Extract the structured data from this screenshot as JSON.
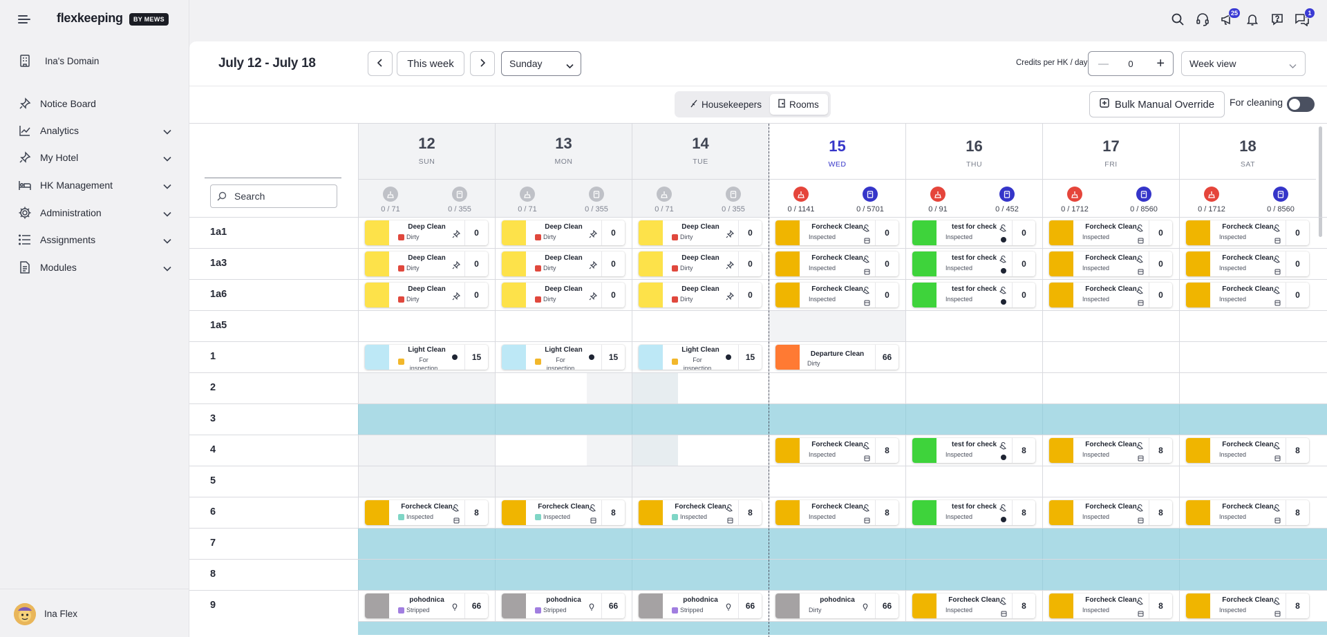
{
  "brand": {
    "logo": "flexkeeping",
    "by": "BY MEWS"
  },
  "sidebar": {
    "domain": "Ina's Domain",
    "items": [
      {
        "label": "Notice Board",
        "icon": "pin-icon",
        "expandable": false
      },
      {
        "label": "Analytics",
        "icon": "chart-icon",
        "expandable": true
      },
      {
        "label": "My Hotel",
        "icon": "pin-icon",
        "expandable": true
      },
      {
        "label": "HK Management",
        "icon": "bed-icon",
        "expandable": true
      },
      {
        "label": "Administration",
        "icon": "gear-icon",
        "expandable": true
      },
      {
        "label": "Assignments",
        "icon": "list-icon",
        "expandable": true
      },
      {
        "label": "Modules",
        "icon": "document-icon",
        "expandable": true
      }
    ],
    "user": "Ina Flex"
  },
  "topbar": {
    "icons": [
      "search-icon",
      "support-icon",
      "megaphone-icon",
      "bell-icon",
      "help-icon",
      "chat-icon"
    ],
    "megaphone_badge": "25",
    "chat_badge": "1"
  },
  "toolbar": {
    "date_range": "July 12 - July 18",
    "this_week": "This week",
    "day_select": "Sunday",
    "credits_label": "Credits per HK / day:",
    "credits_value": "0",
    "view_select": "Week view",
    "tab_housekeepers": "Housekeepers",
    "tab_rooms": "Rooms",
    "bulk_override": "Bulk Manual Override",
    "for_cleaning": "For cleaning"
  },
  "search": {
    "placeholder": "Search"
  },
  "days": [
    {
      "num": "12",
      "name": "SUN",
      "s1": "0 / 71",
      "s2": "0 / 355"
    },
    {
      "num": "13",
      "name": "MON",
      "s1": "0 / 71",
      "s2": "0 / 355"
    },
    {
      "num": "14",
      "name": "TUE",
      "s1": "0 / 71",
      "s2": "0 / 355"
    },
    {
      "num": "15",
      "name": "WED",
      "s1": "0 / 1141",
      "s2": "0 / 5701"
    },
    {
      "num": "16",
      "name": "THU",
      "s1": "0 / 91",
      "s2": "0 / 452"
    },
    {
      "num": "17",
      "name": "FRI",
      "s1": "0 / 1712",
      "s2": "0 / 8560"
    },
    {
      "num": "18",
      "name": "SAT",
      "s1": "0 / 1712",
      "s2": "0 / 8560"
    }
  ],
  "colors": {
    "deep_clean": "#fde24a",
    "forcheck": "#f0b500",
    "test_check": "#3ed33b",
    "light_clean": "#bde8f6",
    "departure": "#ff7a33",
    "pohodnica": "#a5a2a3",
    "dirty_sq": "#e0483d",
    "inspected_sq": "#7fd6c6",
    "inspection_sq": "#f2b72b",
    "stripped_sq": "#a17ee0",
    "teal_row": "#acdbe6",
    "accent": "#3535c9"
  },
  "rows": [
    {
      "room": "1a1",
      "cells": [
        {
          "t": "Deep Clean",
          "s": "Dirty",
          "c": "#fde24a",
          "q": "#e0483d",
          "n": "0",
          "i": "pin"
        },
        {
          "t": "Deep Clean",
          "s": "Dirty",
          "c": "#fde24a",
          "q": "#e0483d",
          "n": "0",
          "i": "pin"
        },
        {
          "t": "Deep Clean",
          "s": "Dirty",
          "c": "#fde24a",
          "q": "#e0483d",
          "n": "0",
          "i": "pin"
        },
        {
          "t": "Forcheck Clean",
          "s": "Inspected",
          "c": "#f0b500",
          "n": "0",
          "i": "cart"
        },
        {
          "t": "test for check",
          "s": "Inspected",
          "c": "#3ed33b",
          "n": "0",
          "i": "cartdot"
        },
        {
          "t": "Forcheck Clean",
          "s": "Inspected",
          "c": "#f0b500",
          "n": "0",
          "i": "cart"
        },
        {
          "t": "Forcheck Clean",
          "s": "Inspected",
          "c": "#f0b500",
          "n": "0",
          "i": "cart"
        }
      ]
    },
    {
      "room": "1a3",
      "cells": [
        {
          "t": "Deep Clean",
          "s": "Dirty",
          "c": "#fde24a",
          "q": "#e0483d",
          "n": "0",
          "i": "pin"
        },
        {
          "t": "Deep Clean",
          "s": "Dirty",
          "c": "#fde24a",
          "q": "#e0483d",
          "n": "0",
          "i": "pin"
        },
        {
          "t": "Deep Clean",
          "s": "Dirty",
          "c": "#fde24a",
          "q": "#e0483d",
          "n": "0",
          "i": "pin"
        },
        {
          "t": "Forcheck Clean",
          "s": "Inspected",
          "c": "#f0b500",
          "n": "0",
          "i": "cart"
        },
        {
          "t": "test for check",
          "s": "Inspected",
          "c": "#3ed33b",
          "n": "0",
          "i": "cartdot"
        },
        {
          "t": "Forcheck Clean",
          "s": "Inspected",
          "c": "#f0b500",
          "n": "0",
          "i": "cart"
        },
        {
          "t": "Forcheck Clean",
          "s": "Inspected",
          "c": "#f0b500",
          "n": "0",
          "i": "cart"
        }
      ]
    },
    {
      "room": "1a6",
      "cells": [
        {
          "t": "Deep Clean",
          "s": "Dirty",
          "c": "#fde24a",
          "q": "#e0483d",
          "n": "0",
          "i": "pin"
        },
        {
          "t": "Deep Clean",
          "s": "Dirty",
          "c": "#fde24a",
          "q": "#e0483d",
          "n": "0",
          "i": "pin"
        },
        {
          "t": "Deep Clean",
          "s": "Dirty",
          "c": "#fde24a",
          "q": "#e0483d",
          "n": "0",
          "i": "pin"
        },
        {
          "t": "Forcheck Clean",
          "s": "Inspected",
          "c": "#f0b500",
          "n": "0",
          "i": "cart"
        },
        {
          "t": "test for check",
          "s": "Inspected",
          "c": "#3ed33b",
          "n": "0",
          "i": "cartdot"
        },
        {
          "t": "Forcheck Clean",
          "s": "Inspected",
          "c": "#f0b500",
          "n": "0",
          "i": "cart"
        },
        {
          "t": "Forcheck Clean",
          "s": "Inspected",
          "c": "#f0b500",
          "n": "0",
          "i": "cart"
        }
      ]
    },
    {
      "room": "1a5",
      "shade": [
        3
      ],
      "cells": [
        null,
        null,
        null,
        null,
        null,
        null,
        null
      ]
    },
    {
      "room": "1",
      "cells": [
        {
          "t": "Light Clean",
          "s": "For inspection",
          "c": "#bde8f6",
          "q": "#f2b72b",
          "n": "15",
          "i": "dot",
          "wrap": true
        },
        {
          "t": "Light Clean",
          "s": "For inspection",
          "c": "#bde8f6",
          "q": "#f2b72b",
          "n": "15",
          "i": "dot",
          "wrap": true
        },
        {
          "t": "Light Clean",
          "s": "For inspection",
          "c": "#bde8f6",
          "q": "#f2b72b",
          "n": "15",
          "i": "dot",
          "wrap": true
        },
        {
          "t": "Departure Clean",
          "s": "Dirty",
          "c": "#ff7a33",
          "n": "66",
          "i": "none"
        },
        null,
        null,
        null
      ]
    },
    {
      "room": "2",
      "shade": [
        0,
        1,
        2
      ],
      "cells": [
        null,
        null,
        null,
        null,
        null,
        null,
        null
      ]
    },
    {
      "room": "3",
      "teal": true,
      "cells": []
    },
    {
      "room": "4",
      "shade": [
        0,
        1,
        2
      ],
      "cells": [
        null,
        null,
        null,
        {
          "t": "Forcheck Clean",
          "s": "Inspected",
          "c": "#f0b500",
          "n": "8",
          "i": "cart"
        },
        {
          "t": "test for check",
          "s": "Inspected",
          "c": "#3ed33b",
          "n": "8",
          "i": "cartdot"
        },
        {
          "t": "Forcheck Clean",
          "s": "Inspected",
          "c": "#f0b500",
          "n": "8",
          "i": "cart"
        },
        {
          "t": "Forcheck Clean",
          "s": "Inspected",
          "c": "#f0b500",
          "n": "8",
          "i": "cart"
        }
      ]
    },
    {
      "room": "5",
      "shade": [
        0,
        1,
        2
      ],
      "cells": [
        null,
        null,
        null,
        null,
        null,
        null,
        null
      ]
    },
    {
      "room": "6",
      "cells": [
        {
          "t": "Forcheck Clean",
          "s": "Inspected",
          "c": "#f0b500",
          "q": "#7fd6c6",
          "n": "8",
          "i": "cart"
        },
        {
          "t": "Forcheck Clean",
          "s": "Inspected",
          "c": "#f0b500",
          "q": "#7fd6c6",
          "n": "8",
          "i": "cart"
        },
        {
          "t": "Forcheck Clean",
          "s": "Inspected",
          "c": "#f0b500",
          "q": "#7fd6c6",
          "n": "8",
          "i": "cart"
        },
        {
          "t": "Forcheck Clean",
          "s": "Inspected",
          "c": "#f0b500",
          "n": "8",
          "i": "cart"
        },
        {
          "t": "test for check",
          "s": "Inspected",
          "c": "#3ed33b",
          "n": "8",
          "i": "cartdot"
        },
        {
          "t": "Forcheck Clean",
          "s": "Inspected",
          "c": "#f0b500",
          "n": "8",
          "i": "cart"
        },
        {
          "t": "Forcheck Clean",
          "s": "Inspected",
          "c": "#f0b500",
          "n": "8",
          "i": "cart"
        }
      ]
    },
    {
      "room": "7",
      "teal": true,
      "cells": []
    },
    {
      "room": "8",
      "teal": true,
      "cells": []
    },
    {
      "room": "9",
      "cells": [
        {
          "t": "pohodnica",
          "s": "Stripped",
          "c": "#a5a2a3",
          "q": "#a17ee0",
          "n": "66",
          "i": "bulb"
        },
        {
          "t": "pohodnica",
          "s": "Stripped",
          "c": "#a5a2a3",
          "q": "#a17ee0",
          "n": "66",
          "i": "bulb"
        },
        {
          "t": "pohodnica",
          "s": "Stripped",
          "c": "#a5a2a3",
          "q": "#a17ee0",
          "n": "66",
          "i": "bulb"
        },
        {
          "t": "pohodnica",
          "s": "Dirty",
          "c": "#a5a2a3",
          "n": "66",
          "i": "bulb"
        },
        {
          "t": "Forcheck Clean",
          "s": "Inspected",
          "c": "#f0b500",
          "n": "8",
          "i": "cart"
        },
        {
          "t": "Forcheck Clean",
          "s": "Inspected",
          "c": "#f0b500",
          "n": "8",
          "i": "cart"
        },
        {
          "t": "Forcheck Clean",
          "s": "Inspected",
          "c": "#f0b500",
          "n": "8",
          "i": "cart"
        }
      ]
    }
  ]
}
